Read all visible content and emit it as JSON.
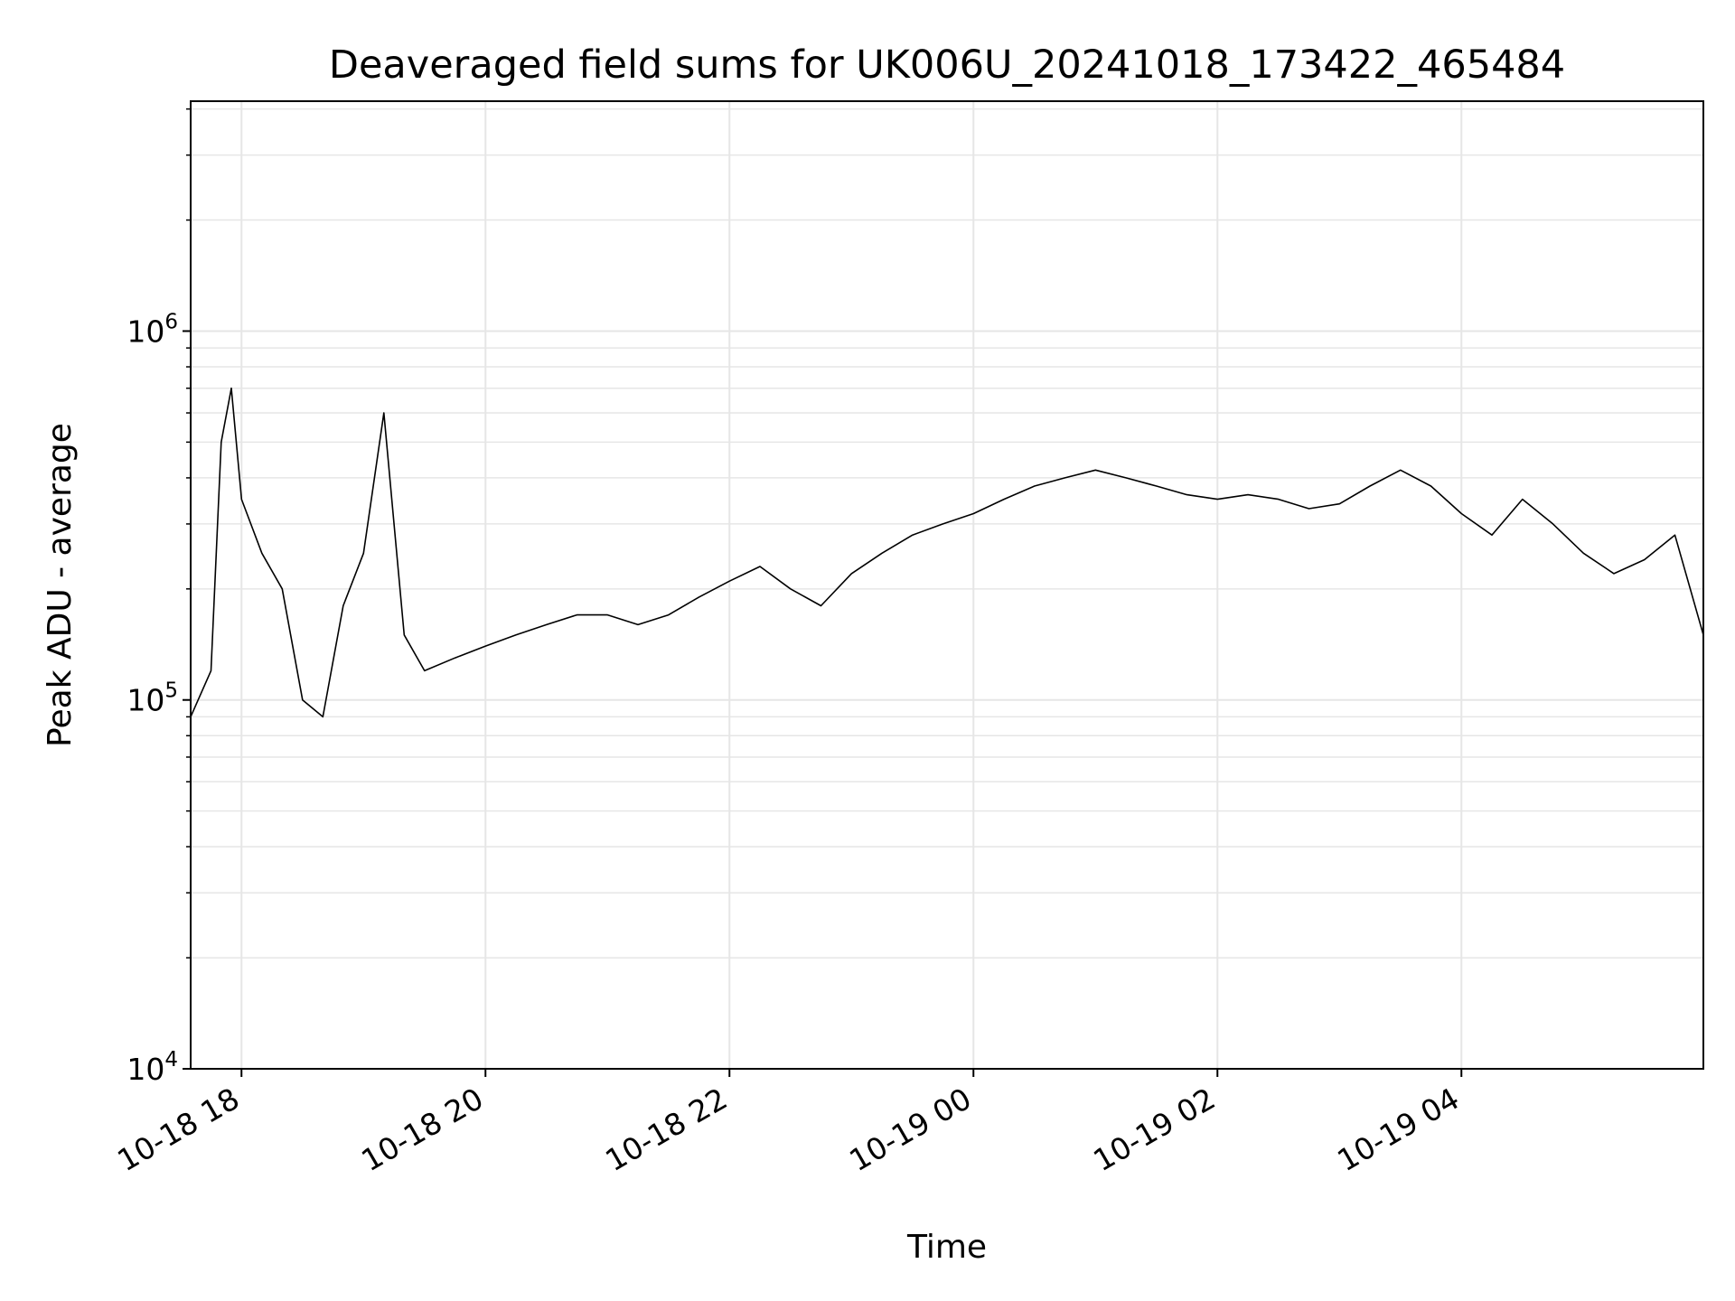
{
  "chart_data": {
    "type": "line",
    "title": "Deaveraged field sums for UK006U_20241018_173422_465484",
    "xlabel": "Time",
    "ylabel": "Peak ADU - average",
    "x_range": [
      "2024-10-18 17:35",
      "2024-10-19 05:59"
    ],
    "ylim": [
      10000,
      4200000
    ],
    "yscale": "log",
    "grid": true,
    "line_color": "#000000",
    "grid_color": "#e6e6e6",
    "xticks": [
      {
        "label": "10-18 18",
        "value": "2024-10-18 18:00"
      },
      {
        "label": "10-18 20",
        "value": "2024-10-18 20:00"
      },
      {
        "label": "10-18 22",
        "value": "2024-10-18 22:00"
      },
      {
        "label": "10-19 00",
        "value": "2024-10-19 00:00"
      },
      {
        "label": "10-19 02",
        "value": "2024-10-19 02:00"
      },
      {
        "label": "10-19 04",
        "value": "2024-10-19 04:00"
      }
    ],
    "yticks": [
      {
        "base": "10",
        "exp": "4",
        "value": 10000
      },
      {
        "base": "10",
        "exp": "5",
        "value": 100000
      },
      {
        "base": "10",
        "exp": "6",
        "value": 1000000
      }
    ],
    "series": [
      {
        "x": [
          "2024-10-18 17:35",
          "2024-10-18 17:45",
          "2024-10-18 17:50",
          "2024-10-18 17:55",
          "2024-10-18 18:00",
          "2024-10-18 18:10",
          "2024-10-18 18:20",
          "2024-10-18 18:30",
          "2024-10-18 18:40",
          "2024-10-18 18:50",
          "2024-10-18 19:00",
          "2024-10-18 19:10",
          "2024-10-18 19:20",
          "2024-10-18 19:30",
          "2024-10-18 19:45",
          "2024-10-18 20:00",
          "2024-10-18 20:15",
          "2024-10-18 20:30",
          "2024-10-18 20:45",
          "2024-10-18 21:00",
          "2024-10-18 21:15",
          "2024-10-18 21:30",
          "2024-10-18 21:45",
          "2024-10-18 22:00",
          "2024-10-18 22:15",
          "2024-10-18 22:30",
          "2024-10-18 22:45",
          "2024-10-18 23:00",
          "2024-10-18 23:15",
          "2024-10-18 23:30",
          "2024-10-18 23:45",
          "2024-10-19 00:00",
          "2024-10-19 00:15",
          "2024-10-19 00:30",
          "2024-10-19 00:45",
          "2024-10-19 01:00",
          "2024-10-19 01:15",
          "2024-10-19 01:30",
          "2024-10-19 01:45",
          "2024-10-19 02:00",
          "2024-10-19 02:15",
          "2024-10-19 02:30",
          "2024-10-19 02:45",
          "2024-10-19 03:00",
          "2024-10-19 03:15",
          "2024-10-19 03:30",
          "2024-10-19 03:45",
          "2024-10-19 04:00",
          "2024-10-19 04:15",
          "2024-10-19 04:30",
          "2024-10-19 04:45",
          "2024-10-19 05:00",
          "2024-10-19 05:15",
          "2024-10-19 05:30",
          "2024-10-19 05:45",
          "2024-10-19 05:59"
        ],
        "y": [
          90000,
          120000,
          500000,
          700000,
          350000,
          250000,
          200000,
          100000,
          90000,
          180000,
          250000,
          600000,
          150000,
          120000,
          130000,
          140000,
          150000,
          160000,
          170000,
          170000,
          160000,
          170000,
          190000,
          210000,
          230000,
          200000,
          180000,
          220000,
          250000,
          280000,
          300000,
          320000,
          350000,
          380000,
          400000,
          420000,
          400000,
          380000,
          360000,
          350000,
          360000,
          350000,
          330000,
          340000,
          380000,
          420000,
          380000,
          320000,
          280000,
          350000,
          300000,
          250000,
          220000,
          240000,
          280000,
          150000
        ]
      }
    ]
  }
}
